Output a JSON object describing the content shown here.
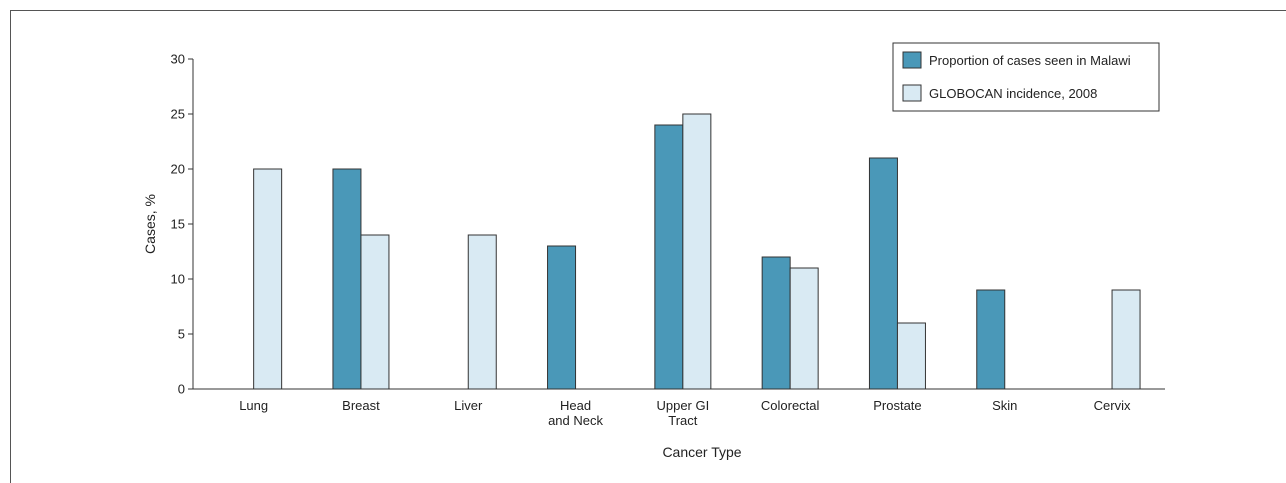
{
  "chart_data": {
    "type": "bar",
    "xlabel": "Cancer Type",
    "ylabel": "Cases, %",
    "ylim": [
      0,
      30
    ],
    "yticks": [
      0,
      5,
      10,
      15,
      20,
      25,
      30
    ],
    "categories": [
      "Lung",
      "Breast",
      "Liver",
      "Head and Neck",
      "Upper GI Tract",
      "Colorectal",
      "Prostate",
      "Skin",
      "Cervix"
    ],
    "category_lines": [
      [
        "Lung"
      ],
      [
        "Breast"
      ],
      [
        "Liver"
      ],
      [
        "Head",
        "and Neck"
      ],
      [
        "Upper GI",
        "Tract"
      ],
      [
        "Colorectal"
      ],
      [
        "Prostate"
      ],
      [
        "Skin"
      ],
      [
        "Cervix"
      ]
    ],
    "series": [
      {
        "name": "Proportion of cases seen in Malawi",
        "color": "#4a98b8",
        "values": [
          0,
          20,
          0,
          13,
          24,
          12,
          21,
          9,
          0
        ]
      },
      {
        "name": "GLOBOCAN incidence, 2008",
        "color": "#d9eaf3",
        "values": [
          20,
          14,
          14,
          0,
          25,
          11,
          6,
          0,
          9
        ]
      }
    ],
    "legend_position": "top-right",
    "grid": false
  }
}
